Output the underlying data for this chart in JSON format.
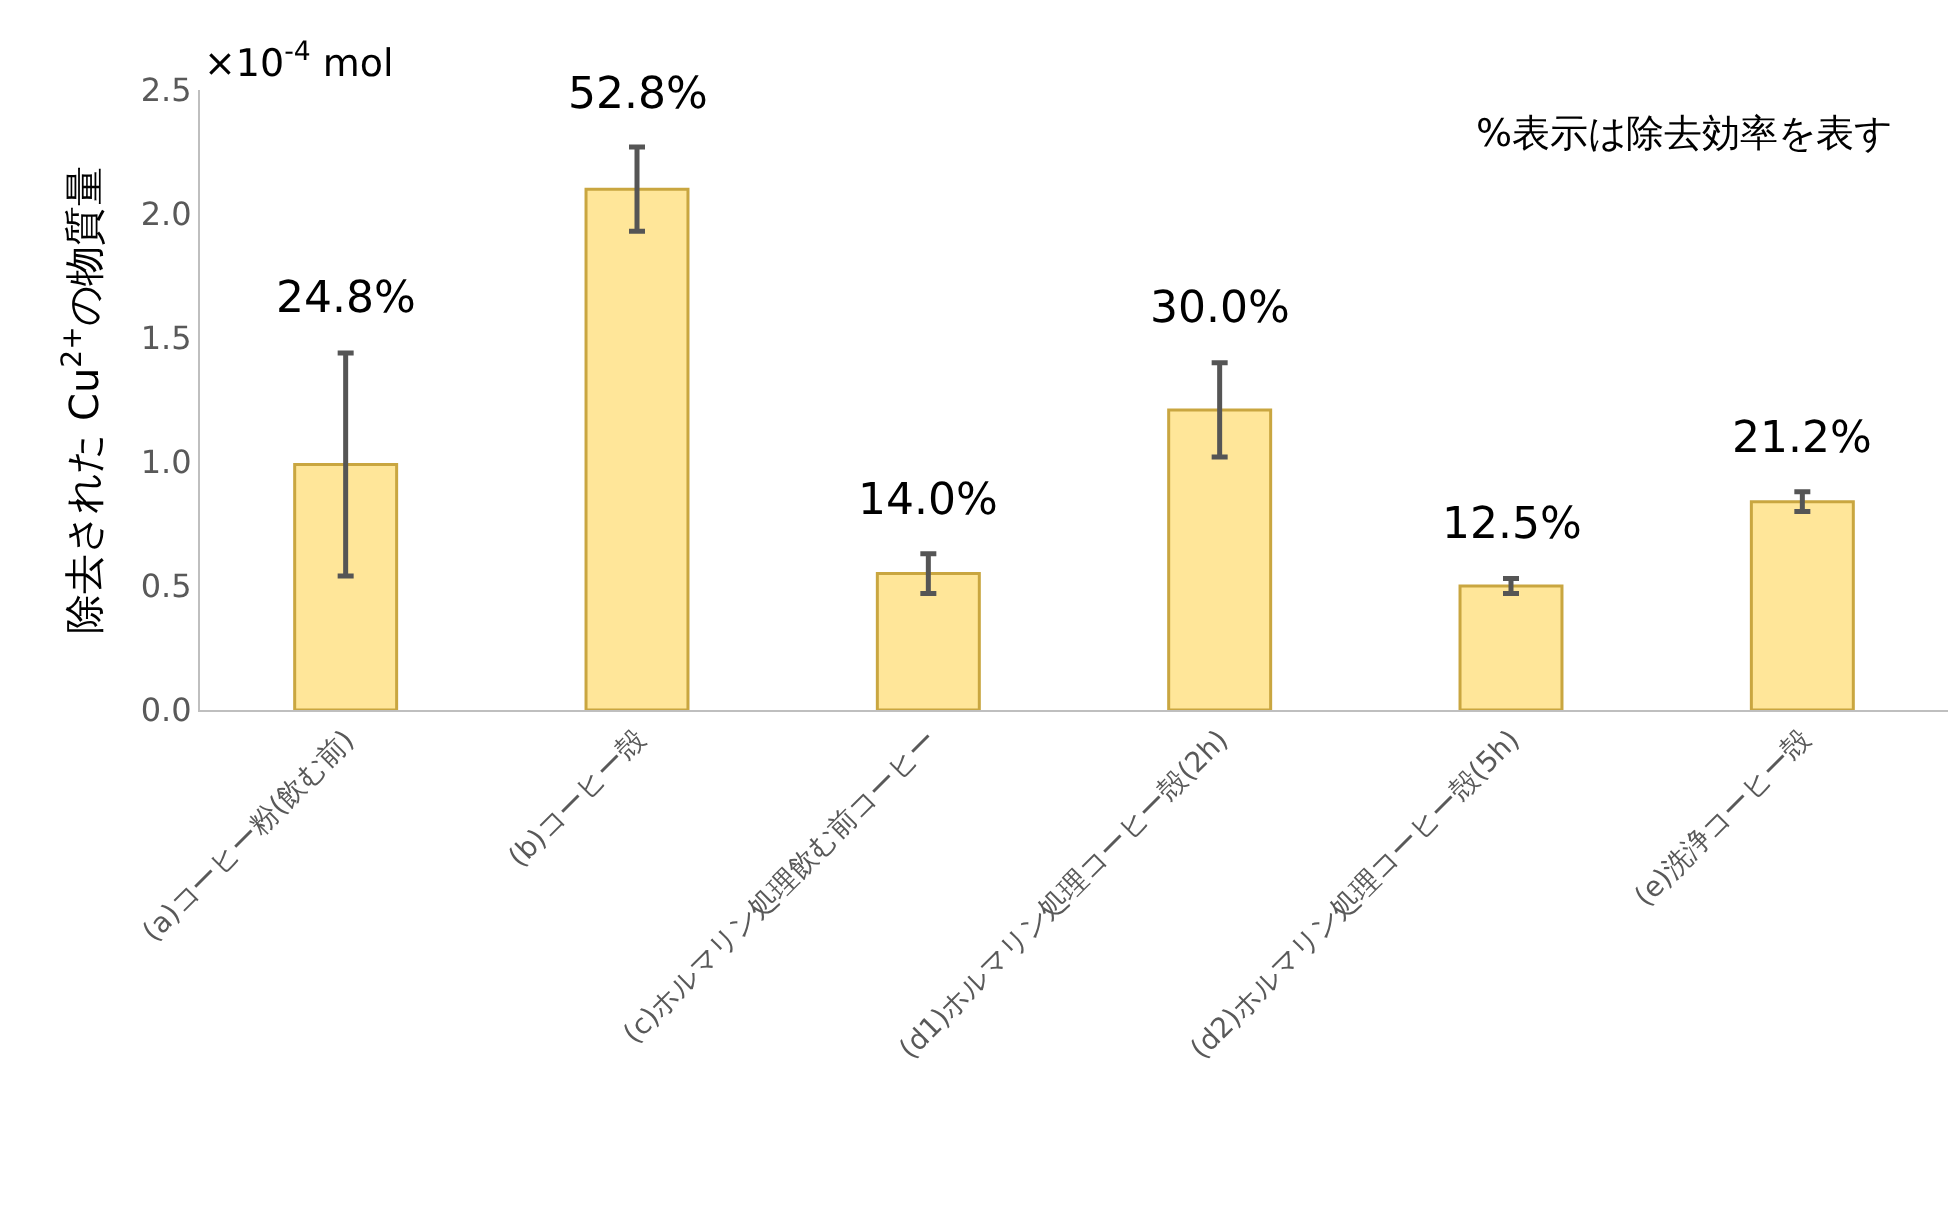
{
  "chart_data": {
    "type": "bar",
    "ylabel": "除去された Cu$^{2+}$の物質量",
    "categories": [
      "(a)コーヒー粉(飲む前)",
      "(b)コーヒー殻",
      "(c)ホルマリン処理飲む前コーヒー",
      "(d1)ホルマリン処理コーヒー殻(2h)",
      "(d2)ホルマリン処理コーヒー殻(5h)",
      "(e)洗浄コーヒー殻"
    ],
    "values": [
      0.99,
      2.1,
      0.55,
      1.21,
      0.5,
      0.84
    ],
    "errors": [
      0.45,
      0.17,
      0.08,
      0.19,
      0.03,
      0.04
    ],
    "color": "#ffe699",
    "ylim": [
      0,
      2.5
    ],
    "yticks": [
      {
        "value": 0,
        "label": "0.0"
      },
      {
        "value": 0.5,
        "label": "0.5"
      },
      {
        "value": 1,
        "label": "1.0"
      },
      {
        "value": 1.5,
        "label": "1.5"
      },
      {
        "value": 2,
        "label": "2.0"
      },
      {
        "value": 2.5,
        "label": "2.5"
      }
    ],
    "grid": false,
    "annotations": [
      "×10$^{-4}$ mol",
      "%表示は除去効率を表す",
      {
        "text": "24.8%",
        "x": "(a)コーヒー粉(飲む前)",
        "y": 1.44
      },
      {
        "text": "52.8%",
        "x": "(b)コーヒー殻",
        "y": 2.27
      },
      {
        "text": "14.0%",
        "x": "(c)ホルマリン処理飲む前コーヒー",
        "y": 0.63
      },
      {
        "text": "30.0%",
        "x": "(d1)ホルマリン処理コーヒー殻(2h)",
        "y": 1.4
      },
      {
        "text": "12.5%",
        "x": "(d2)ホルマリン処理コーヒー殻(5h)",
        "y": 0.53
      },
      {
        "text": "21.2%",
        "x": "(e)洗浄コーヒー殻",
        "y": 0.88
      }
    ]
  }
}
